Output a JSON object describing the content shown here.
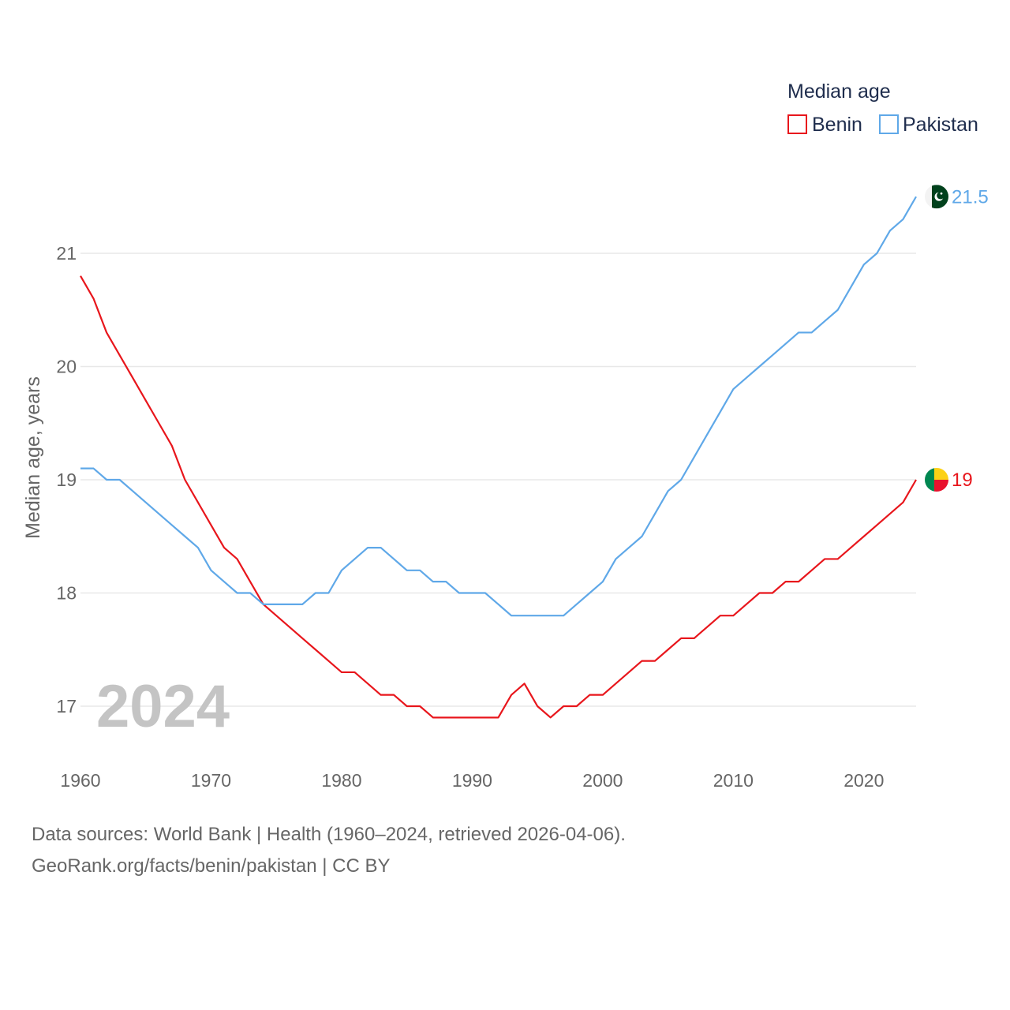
{
  "chart_data": {
    "type": "line",
    "title": "",
    "xlabel": "",
    "ylabel": "Median age, years",
    "legend": {
      "title": "Median age",
      "placement": "top-right"
    },
    "xlim": [
      1960,
      2024
    ],
    "ylim": [
      16.6,
      21.6
    ],
    "x_ticks": [
      1960,
      1970,
      1980,
      1990,
      2000,
      2010,
      2020
    ],
    "y_ticks": [
      17,
      18,
      19,
      20,
      21
    ],
    "grid": true,
    "year_watermark": "2024",
    "x": [
      1960,
      1961,
      1962,
      1963,
      1964,
      1965,
      1966,
      1967,
      1968,
      1969,
      1970,
      1971,
      1972,
      1973,
      1974,
      1975,
      1976,
      1977,
      1978,
      1979,
      1980,
      1981,
      1982,
      1983,
      1984,
      1985,
      1986,
      1987,
      1988,
      1989,
      1990,
      1991,
      1992,
      1993,
      1994,
      1995,
      1996,
      1997,
      1998,
      1999,
      2000,
      2001,
      2002,
      2003,
      2004,
      2005,
      2006,
      2007,
      2008,
      2009,
      2010,
      2011,
      2012,
      2013,
      2014,
      2015,
      2016,
      2017,
      2018,
      2019,
      2020,
      2021,
      2022,
      2023,
      2024
    ],
    "series": [
      {
        "name": "Benin",
        "color": "#e8161c",
        "end_label": "19",
        "flag_colors": [
          "#008751",
          "#fcd116",
          "#e8112d"
        ],
        "values": [
          20.8,
          20.6,
          20.3,
          20.1,
          19.9,
          19.7,
          19.5,
          19.3,
          19.0,
          18.8,
          18.6,
          18.4,
          18.3,
          18.1,
          17.9,
          17.8,
          17.7,
          17.6,
          17.5,
          17.4,
          17.3,
          17.3,
          17.2,
          17.1,
          17.1,
          17.0,
          17.0,
          16.9,
          16.9,
          16.9,
          16.9,
          16.9,
          16.9,
          17.1,
          17.2,
          17.0,
          16.9,
          17.0,
          17.0,
          17.1,
          17.1,
          17.2,
          17.3,
          17.4,
          17.4,
          17.5,
          17.6,
          17.6,
          17.7,
          17.8,
          17.8,
          17.9,
          18.0,
          18.0,
          18.1,
          18.1,
          18.2,
          18.3,
          18.3,
          18.4,
          18.5,
          18.6,
          18.7,
          18.8,
          19.0
        ]
      },
      {
        "name": "Pakistan",
        "color": "#5fa8e8",
        "end_label": "21.5",
        "flag_colors": [
          "#ffffff",
          "#01411c",
          "#ffffff"
        ],
        "values": [
          19.1,
          19.1,
          19.0,
          19.0,
          18.9,
          18.8,
          18.7,
          18.6,
          18.5,
          18.4,
          18.2,
          18.1,
          18.0,
          18.0,
          17.9,
          17.9,
          17.9,
          17.9,
          18.0,
          18.0,
          18.2,
          18.3,
          18.4,
          18.4,
          18.3,
          18.2,
          18.2,
          18.1,
          18.1,
          18.0,
          18.0,
          18.0,
          17.9,
          17.8,
          17.8,
          17.8,
          17.8,
          17.8,
          17.9,
          18.0,
          18.1,
          18.3,
          18.4,
          18.5,
          18.7,
          18.9,
          19.0,
          19.2,
          19.4,
          19.6,
          19.8,
          19.9,
          20.0,
          20.1,
          20.2,
          20.3,
          20.3,
          20.4,
          20.5,
          20.7,
          20.9,
          21.0,
          21.2,
          21.3,
          21.5
        ]
      }
    ]
  },
  "footer": {
    "sources": "Data sources: World Bank | Health (1960–2024, retrieved 2026-04-06).",
    "attribution": "GeoRank.org/facts/benin/pakistan | CC BY"
  }
}
